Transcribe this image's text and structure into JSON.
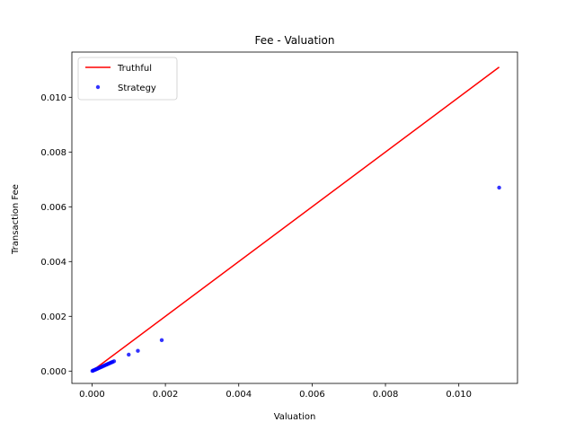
{
  "chart_data": {
    "type": "scatter",
    "title": "Fee - Valuation",
    "xlabel": "Valuation",
    "ylabel": "Transaction Fee",
    "xlim": [
      -0.00055,
      0.0116
    ],
    "ylim": [
      -0.00045,
      0.01165
    ],
    "xticks": [
      0.0,
      0.002,
      0.004,
      0.006,
      0.008,
      0.01
    ],
    "xtick_labels": [
      "0.000",
      "0.002",
      "0.004",
      "0.006",
      "0.008",
      "0.010"
    ],
    "yticks": [
      0.0,
      0.002,
      0.004,
      0.006,
      0.008,
      0.01
    ],
    "ytick_labels": [
      "0.000",
      "0.002",
      "0.004",
      "0.006",
      "0.008",
      "0.010"
    ],
    "grid": false,
    "legend_position": "top-left",
    "series": [
      {
        "name": "Truthful",
        "kind": "line",
        "color": "#ff0000",
        "x": [
          0.0,
          0.0111
        ],
        "y": [
          0.0,
          0.0111
        ]
      },
      {
        "name": "Strategy",
        "kind": "scatter",
        "color": "#0000ff",
        "x": [
          1e-05,
          3e-05,
          5e-05,
          8e-05,
          0.0001,
          0.00012,
          0.00015,
          0.00018,
          0.0002,
          0.00023,
          0.00026,
          0.00029,
          0.00032,
          0.00035,
          0.00038,
          0.00041,
          0.00044,
          0.00047,
          0.0005,
          0.00053,
          0.00056,
          0.0006,
          0.001,
          0.00125,
          0.0019,
          0.0111
        ],
        "y": [
          6e-06,
          1.8e-05,
          3e-05,
          4.8e-05,
          6e-05,
          7.2e-05,
          9e-05,
          0.000108,
          0.00012,
          0.000138,
          0.000156,
          0.000174,
          0.000192,
          0.00021,
          0.000228,
          0.000246,
          0.000264,
          0.000282,
          0.0003,
          0.000318,
          0.000336,
          0.00036,
          0.0006,
          0.00074,
          0.00113,
          0.0067
        ]
      }
    ]
  }
}
